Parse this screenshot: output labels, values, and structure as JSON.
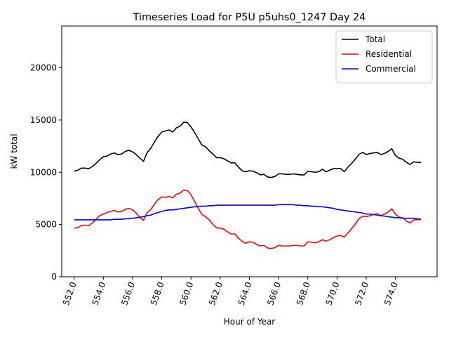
{
  "chart_data": {
    "type": "line",
    "title": "Timeseries Load for P5U p5uhs0_1247  Day 24",
    "xlabel": "Hour of Year",
    "ylabel": "kW total",
    "xlim": [
      551.15,
      576.85
    ],
    "ylim": [
      0,
      24000
    ],
    "xticks": [
      552.0,
      554.0,
      556.0,
      558.0,
      560.0,
      562.0,
      564.0,
      566.0,
      568.0,
      570.0,
      572.0,
      574.0
    ],
    "xtick_labels": [
      "552.0",
      "554.0",
      "556.0",
      "558.0",
      "560.0",
      "562.0",
      "564.0",
      "566.0",
      "568.0",
      "570.0",
      "572.0",
      "574.0"
    ],
    "yticks": [
      0,
      5000,
      10000,
      15000,
      20000
    ],
    "ytick_labels": [
      "0",
      "5000",
      "10000",
      "15000",
      "20000"
    ],
    "grid": false,
    "legend_position": "top-right",
    "x_start": 552.0,
    "x_step": 0.25,
    "series": [
      {
        "name": "Total",
        "color": "#000000",
        "values": [
          10100,
          10200,
          10400,
          10400,
          10350,
          10550,
          10850,
          11200,
          11500,
          11550,
          11750,
          11850,
          11700,
          11750,
          12000,
          12100,
          11950,
          11700,
          11350,
          11050,
          11900,
          12300,
          12900,
          13450,
          13850,
          13950,
          14050,
          13850,
          14250,
          14400,
          14800,
          14750,
          14350,
          13800,
          13200,
          12600,
          12450,
          12050,
          11750,
          11400,
          11400,
          11300,
          11100,
          10900,
          10900,
          10500,
          10150,
          10050,
          10150,
          10100,
          9950,
          9750,
          9800,
          9550,
          9500,
          9600,
          9850,
          9850,
          9800,
          9800,
          9850,
          9800,
          9750,
          9750,
          10100,
          10050,
          10000,
          10050,
          10300,
          10050,
          10200,
          10350,
          10350,
          10350,
          10050,
          10500,
          10850,
          11250,
          11700,
          11900,
          11700,
          11800,
          11850,
          11900,
          11700,
          11800,
          12000,
          12250,
          11600,
          11350,
          11250,
          10950,
          10750,
          11000,
          10950,
          10950
        ]
      },
      {
        "name": "Residential",
        "color": "#ff0000",
        "values": [
          4650,
          4700,
          4900,
          4950,
          4900,
          5150,
          5500,
          5850,
          6000,
          6150,
          6250,
          6350,
          6200,
          6250,
          6450,
          6550,
          6400,
          6100,
          5650,
          5400,
          6150,
          6450,
          6950,
          7400,
          7650,
          7600,
          7700,
          7550,
          7900,
          8000,
          8300,
          8250,
          7850,
          7200,
          6550,
          5950,
          5750,
          5450,
          5000,
          4700,
          4650,
          4550,
          4300,
          4100,
          4100,
          3700,
          3400,
          3200,
          3350,
          3300,
          3100,
          2950,
          3000,
          2750,
          2700,
          2800,
          3000,
          2950,
          2950,
          2950,
          3000,
          3000,
          2950,
          2950,
          3350,
          3300,
          3250,
          3350,
          3550,
          3400,
          3550,
          3750,
          3900,
          3950,
          3800,
          4200,
          4600,
          5050,
          5550,
          5800,
          5750,
          5850,
          5950,
          6050,
          5850,
          6000,
          6200,
          6500,
          6000,
          5700,
          5650,
          5350,
          5150,
          5450,
          5450,
          5500
        ]
      },
      {
        "name": "Commercial",
        "color": "#0000ff",
        "values": [
          5450,
          5450,
          5450,
          5450,
          5450,
          5450,
          5450,
          5450,
          5450,
          5450,
          5450,
          5500,
          5500,
          5500,
          5550,
          5550,
          5600,
          5650,
          5700,
          5750,
          5850,
          5900,
          6050,
          6150,
          6250,
          6350,
          6400,
          6400,
          6450,
          6500,
          6550,
          6600,
          6650,
          6700,
          6700,
          6750,
          6750,
          6800,
          6800,
          6850,
          6850,
          6850,
          6850,
          6850,
          6850,
          6850,
          6850,
          6850,
          6850,
          6850,
          6850,
          6850,
          6850,
          6850,
          6850,
          6850,
          6900,
          6900,
          6900,
          6900,
          6900,
          6850,
          6850,
          6800,
          6800,
          6750,
          6750,
          6700,
          6700,
          6650,
          6600,
          6550,
          6450,
          6400,
          6350,
          6300,
          6250,
          6200,
          6150,
          6100,
          6000,
          6000,
          5950,
          5900,
          5850,
          5800,
          5750,
          5700,
          5650,
          5650,
          5600,
          5600,
          5600,
          5600,
          5550,
          5500
        ]
      }
    ]
  }
}
